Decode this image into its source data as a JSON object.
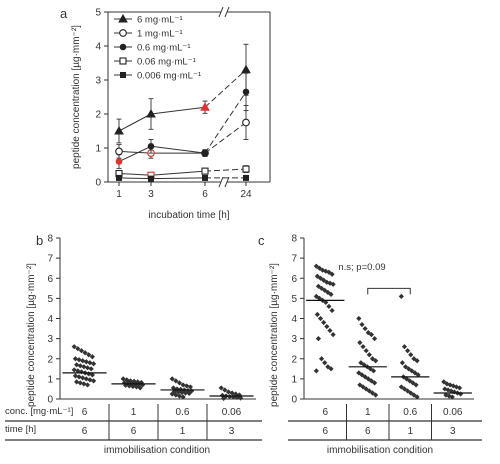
{
  "panels": {
    "a": {
      "letter": "a",
      "chart_data": {
        "type": "line",
        "xlabel": "incubation time [h]",
        "ylabel": "peptide concentration [µg·mm⁻²]",
        "x": [
          1,
          3,
          6,
          24
        ],
        "x_ticks": [
          "1",
          "3",
          "6",
          "24"
        ],
        "axis_break": "//",
        "ylim": [
          0,
          5
        ],
        "y_ticks": [
          "0",
          "1",
          "2",
          "3",
          "4",
          "5"
        ],
        "legend_position": "top-left",
        "series": [
          {
            "name": "6 mg·mL⁻¹",
            "marker": "triangle",
            "values": [
              1.5,
              2.0,
              2.2,
              3.3
            ],
            "errors": [
              0.35,
              0.45,
              0.18,
              0.75
            ],
            "highlight_index": 2
          },
          {
            "name": "1 mg·mL⁻¹",
            "marker": "open-circle",
            "values": [
              0.9,
              0.85,
              0.85,
              1.75
            ],
            "errors": [
              0.2,
              0.15,
              0.08,
              0.5
            ],
            "highlight_index": 1
          },
          {
            "name": "0.6 mg·mL⁻¹",
            "marker": "filled-circle",
            "values": [
              0.6,
              1.05,
              0.85,
              2.65
            ],
            "errors": [
              0.2,
              0.2,
              0.1,
              0.55
            ],
            "highlight_index": 0
          },
          {
            "name": "0.06 mg·mL⁻¹",
            "marker": "open-square",
            "values": [
              0.25,
              0.2,
              0.32,
              0.38
            ],
            "errors": [
              0.05,
              0.05,
              0.05,
              0.1
            ],
            "highlight_index": 1
          },
          {
            "name": "0.006 mg·mL⁻¹",
            "marker": "filled-square",
            "values": [
              0.12,
              0.1,
              0.12,
              0.12
            ],
            "errors": [
              0.02,
              0.02,
              0.02,
              0.02
            ],
            "highlight_index": null
          }
        ],
        "highlight_color": "#e03030"
      }
    },
    "b": {
      "letter": "b",
      "chart_data": {
        "type": "scatter",
        "xlabel": "immobilisation condition",
        "ylabel": "peptide concentration [µg·mm⁻²]",
        "ylim": [
          0,
          8
        ],
        "y_ticks": [
          "0",
          "1",
          "2",
          "3",
          "4",
          "5",
          "6",
          "7",
          "8"
        ],
        "categories": [
          "6",
          "1",
          "0.6",
          "0.06"
        ],
        "medians": [
          1.3,
          0.75,
          0.45,
          0.15
        ],
        "groups": [
          [
            2.6,
            2.5,
            2.4,
            2.3,
            2.2,
            2.1,
            2.0,
            1.95,
            1.9,
            1.85,
            1.8,
            1.75,
            1.7,
            1.65,
            1.6,
            1.55,
            1.5,
            1.45,
            1.4,
            1.35,
            1.3,
            1.25,
            1.2,
            1.15,
            1.1,
            1.05,
            1.0,
            0.95,
            0.9,
            0.85,
            0.8,
            0.75,
            0.7
          ],
          [
            1.0,
            0.95,
            0.9,
            0.88,
            0.85,
            0.82,
            0.8,
            0.78,
            0.76,
            0.74,
            0.72,
            0.7,
            0.68,
            0.65,
            0.62,
            0.6,
            0.55
          ],
          [
            1.0,
            0.9,
            0.8,
            0.7,
            0.65,
            0.6,
            0.55,
            0.5,
            0.48,
            0.45,
            0.42,
            0.4,
            0.38,
            0.35,
            0.32,
            0.3,
            0.28,
            0.25,
            0.2,
            0.15,
            0.1
          ],
          [
            0.55,
            0.45,
            0.35,
            0.3,
            0.25,
            0.2,
            0.18,
            0.15,
            0.12,
            0.1,
            0.08,
            0.05,
            0.03
          ]
        ]
      }
    },
    "c": {
      "letter": "c",
      "chart_data": {
        "type": "scatter",
        "xlabel": "immobilisation condition",
        "ylabel": "peptide concentration [µg·mm⁻²]",
        "ylim": [
          0,
          8
        ],
        "y_ticks": [
          "0",
          "1",
          "2",
          "3",
          "4",
          "5",
          "6",
          "7",
          "8"
        ],
        "categories": [
          "6",
          "1",
          "0.6",
          "0.06"
        ],
        "medians": [
          4.9,
          1.6,
          1.1,
          0.3
        ],
        "annotation": "n.s; p=0.09",
        "bracket": [
          1,
          2
        ],
        "groups": [
          [
            6.6,
            6.5,
            6.4,
            6.35,
            6.3,
            6.2,
            6.1,
            6.0,
            5.9,
            5.8,
            5.75,
            5.7,
            5.6,
            5.5,
            5.4,
            5.3,
            5.2,
            5.1,
            5.0,
            4.9,
            4.8,
            4.6,
            4.4,
            4.2,
            4.0,
            3.8,
            3.6,
            3.4,
            3.2,
            3.0,
            2.0,
            1.8,
            1.6,
            1.5,
            1.4
          ],
          [
            4.0,
            3.7,
            3.5,
            3.3,
            3.2,
            3.0,
            2.8,
            2.6,
            2.4,
            2.2,
            2.0,
            1.9,
            1.8,
            1.7,
            1.6,
            1.5,
            1.4,
            1.3,
            1.2,
            1.1,
            1.0,
            0.9,
            0.8,
            0.7,
            0.6,
            0.5,
            0.4,
            0.3,
            0.2
          ],
          [
            5.1,
            2.6,
            2.4,
            2.2,
            2.0,
            1.9,
            1.8,
            1.6,
            1.5,
            1.4,
            1.3,
            1.2,
            1.1,
            1.0,
            0.9,
            0.8,
            0.7,
            0.6,
            0.5,
            0.4,
            0.3,
            0.2,
            0.1
          ],
          [
            0.85,
            0.75,
            0.7,
            0.65,
            0.6,
            0.55,
            0.5,
            0.45,
            0.4,
            0.35,
            0.3,
            0.25,
            0.2,
            0.15,
            0.1
          ]
        ]
      }
    }
  },
  "condition_table": {
    "row1_label": "conc. [mg·mL⁻¹]",
    "row2_label": "time [h]",
    "conc": [
      "6",
      "1",
      "0.6",
      "0.06"
    ],
    "time": [
      "6",
      "6",
      "1",
      "3"
    ]
  }
}
